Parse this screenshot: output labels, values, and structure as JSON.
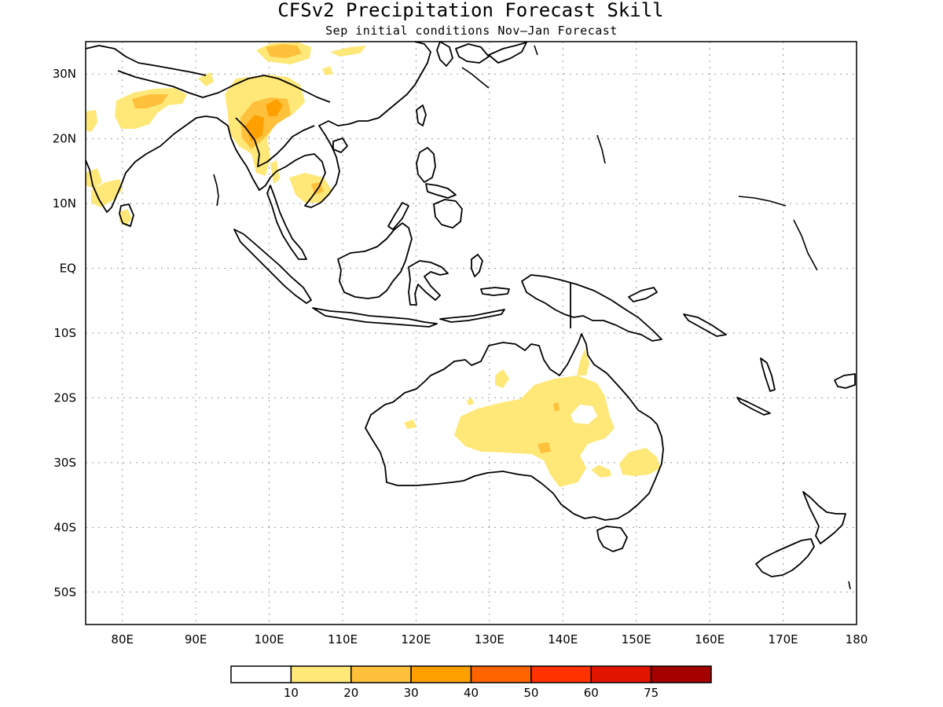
{
  "title": "CFSv2 Precipitation Forecast Skill",
  "subtitle": "Sep initial conditions  Nov–Jan Forecast",
  "map": {
    "lon_range": [
      75,
      180
    ],
    "lat_range": [
      -55,
      35
    ],
    "lat_ticks": [
      {
        "lat": 30,
        "label": "30N"
      },
      {
        "lat": 20,
        "label": "20N"
      },
      {
        "lat": 10,
        "label": "10N"
      },
      {
        "lat": 0,
        "label": "EQ"
      },
      {
        "lat": -10,
        "label": "10S"
      },
      {
        "lat": -20,
        "label": "20S"
      },
      {
        "lat": -30,
        "label": "30S"
      },
      {
        "lat": -40,
        "label": "40S"
      },
      {
        "lat": -50,
        "label": "50S"
      }
    ],
    "lon_ticks": [
      {
        "lon": 80,
        "label": "80E"
      },
      {
        "lon": 90,
        "label": "90E"
      },
      {
        "lon": 100,
        "label": "100E"
      },
      {
        "lon": 110,
        "label": "110E"
      },
      {
        "lon": 120,
        "label": "120E"
      },
      {
        "lon": 130,
        "label": "130E"
      },
      {
        "lon": 140,
        "label": "140E"
      },
      {
        "lon": 150,
        "label": "150E"
      },
      {
        "lon": 160,
        "label": "160E"
      },
      {
        "lon": 170,
        "label": "170E"
      },
      {
        "lon": 180,
        "label": "180"
      }
    ]
  },
  "colorbar": {
    "colors": [
      "#ffffff",
      "#ffe878",
      "#ffc03c",
      "#ffa000",
      "#ff6400",
      "#ff3200",
      "#e11400",
      "#a50000"
    ],
    "labels": [
      "10",
      "20",
      "30",
      "40",
      "50",
      "60",
      "75"
    ]
  }
}
